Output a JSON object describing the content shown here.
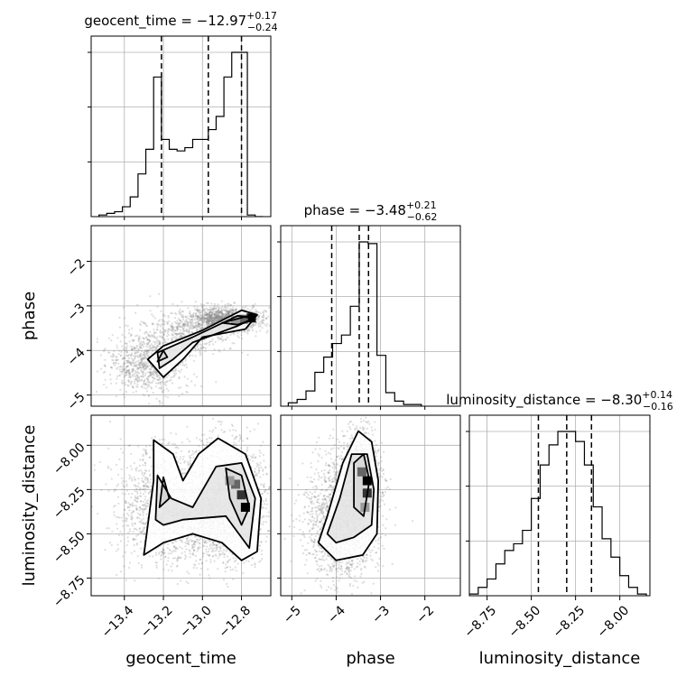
{
  "chart_data": {
    "type": "corner",
    "grid": true,
    "parameters": [
      "geocent_time",
      "phase",
      "luminosity_distance"
    ],
    "axis_labels": {
      "geocent_time": "geocent_time",
      "phase": "phase",
      "luminosity_distance": "luminosity_distance"
    },
    "titles": [
      {
        "param": "geocent_time",
        "prefix": "geocent_time = ",
        "value": "−12.97",
        "plus": "+0.17",
        "minus": "−0.24"
      },
      {
        "param": "phase",
        "prefix": "phase = ",
        "value": "−3.48",
        "plus": "+0.21",
        "minus": "−0.62"
      },
      {
        "param": "luminosity_distance",
        "prefix": "luminosity_distance = ",
        "value": "−8.30",
        "plus": "+0.14",
        "minus": "−0.16"
      }
    ],
    "ranges": {
      "geocent_time": [
        -13.57,
        -12.65
      ],
      "phase": [
        -5.25,
        -1.2
      ],
      "luminosity_distance": [
        -8.85,
        -7.83
      ]
    },
    "ticks": {
      "geocent_time": [
        {
          "v": -13.4,
          "label": "−13.4"
        },
        {
          "v": -13.2,
          "label": "−13.2"
        },
        {
          "v": -13.0,
          "label": "−13.0"
        },
        {
          "v": -12.8,
          "label": "−12.8"
        }
      ],
      "phase": [
        {
          "v": -5,
          "label": "−5"
        },
        {
          "v": -4,
          "label": "−4"
        },
        {
          "v": -3,
          "label": "−3"
        },
        {
          "v": -2,
          "label": "−2"
        }
      ],
      "luminosity_distance": [
        {
          "v": -8.75,
          "label": "−8.75"
        },
        {
          "v": -8.5,
          "label": "−8.50"
        },
        {
          "v": -8.25,
          "label": "−8.25"
        },
        {
          "v": -8.0,
          "label": "−8.00"
        }
      ]
    },
    "quantile_lines": {
      "geocent_time": [
        -13.21,
        -12.97,
        -12.8
      ],
      "phase": [
        -4.1,
        -3.48,
        -3.27
      ],
      "luminosity_distance": [
        -8.46,
        -8.3,
        -8.16
      ]
    },
    "histograms": {
      "geocent_time": {
        "edges": [
          -13.53,
          -13.49,
          -13.45,
          -13.41,
          -13.37,
          -13.33,
          -13.29,
          -13.25,
          -13.21,
          -13.17,
          -13.13,
          -13.09,
          -13.05,
          -13.01,
          -12.97,
          -12.93,
          -12.89,
          -12.85,
          -12.81,
          -12.77,
          -12.73,
          -12.69
        ],
        "counts": [
          1,
          2,
          3,
          6,
          12,
          26,
          41,
          85,
          47,
          41,
          40,
          42,
          47,
          47,
          53,
          61,
          85,
          100,
          100,
          1,
          0
        ]
      },
      "phase": {
        "edges": [
          -5.08,
          -4.88,
          -4.68,
          -4.48,
          -4.28,
          -4.08,
          -3.88,
          -3.68,
          -3.48,
          -3.28,
          -3.08,
          -2.88,
          -2.68,
          -2.48,
          -2.28,
          -2.08
        ],
        "counts": [
          2,
          4,
          9,
          20,
          29,
          37,
          42,
          59,
          97,
          96,
          30,
          8,
          3,
          1,
          1
        ]
      },
      "luminosity_distance": {
        "edges": [
          -8.85,
          -8.8,
          -8.75,
          -8.7,
          -8.65,
          -8.6,
          -8.55,
          -8.5,
          -8.45,
          -8.4,
          -8.35,
          -8.3,
          -8.25,
          -8.2,
          -8.15,
          -8.1,
          -8.05,
          -8.0,
          -7.95,
          -7.9,
          -7.85
        ],
        "counts": [
          1,
          5,
          10,
          19,
          27,
          31,
          39,
          58,
          78,
          90,
          98,
          98,
          92,
          78,
          53,
          34,
          23,
          12,
          5,
          1
        ]
      }
    },
    "scatter_2d": [
      {
        "x": "geocent_time",
        "y": "phase",
        "cores": [
          {
            "cx": -12.88,
            "cy": -3.3,
            "sx": 0.09,
            "sy": 0.13,
            "n": 1400
          },
          {
            "cx": -13.08,
            "cy": -3.6,
            "sx": 0.12,
            "sy": 0.25,
            "n": 500
          },
          {
            "cx": -13.27,
            "cy": -4.3,
            "sx": 0.1,
            "sy": 0.32,
            "n": 900
          }
        ],
        "contours": [
          [
            [
              -13.2,
              -4.6
            ],
            [
              -13.28,
              -4.2
            ],
            [
              -13.2,
              -3.9
            ],
            [
              -13.0,
              -3.55
            ],
            [
              -12.8,
              -3.1
            ],
            [
              -12.72,
              -3.2
            ],
            [
              -12.78,
              -3.52
            ],
            [
              -13.0,
              -3.7
            ],
            [
              -13.1,
              -4.2
            ]
          ],
          [
            [
              -13.22,
              -4.4
            ],
            [
              -13.23,
              -4.05
            ],
            [
              -13.05,
              -3.7
            ],
            [
              -12.82,
              -3.22
            ],
            [
              -12.74,
              -3.28
            ],
            [
              -12.82,
              -3.45
            ],
            [
              -13.05,
              -3.82
            ],
            [
              -13.15,
              -4.2
            ]
          ],
          [
            [
              -12.9,
              -3.38
            ],
            [
              -12.76,
              -3.22
            ],
            [
              -12.73,
              -3.3
            ],
            [
              -12.82,
              -3.42
            ]
          ],
          [
            [
              -13.23,
              -4.25
            ],
            [
              -13.2,
              -4.0
            ],
            [
              -13.18,
              -4.15
            ]
          ]
        ],
        "peaks": [
          {
            "x": -12.75,
            "y": -3.27,
            "z": 1.0
          },
          {
            "x": -12.79,
            "y": -3.3,
            "z": 0.6
          },
          {
            "x": -12.83,
            "y": -3.33,
            "z": 0.4
          }
        ]
      },
      {
        "x": "geocent_time",
        "y": "luminosity_distance",
        "cores": [
          {
            "cx": -12.87,
            "cy": -8.3,
            "sx": 0.11,
            "sy": 0.17,
            "n": 1500
          },
          {
            "cx": -13.2,
            "cy": -8.33,
            "sx": 0.12,
            "sy": 0.17,
            "n": 1100
          },
          {
            "cx": -13.0,
            "cy": -8.45,
            "sx": 0.15,
            "sy": 0.12,
            "n": 600
          }
        ],
        "contours": [
          [
            [
              -13.3,
              -8.62
            ],
            [
              -13.25,
              -8.2
            ],
            [
              -13.25,
              -7.97
            ],
            [
              -13.15,
              -8.05
            ],
            [
              -13.1,
              -8.2
            ],
            [
              -13.02,
              -8.05
            ],
            [
              -12.92,
              -7.96
            ],
            [
              -12.78,
              -8.05
            ],
            [
              -12.7,
              -8.3
            ],
            [
              -12.72,
              -8.6
            ],
            [
              -12.8,
              -8.65
            ],
            [
              -12.9,
              -8.55
            ],
            [
              -13.05,
              -8.5
            ],
            [
              -13.2,
              -8.55
            ]
          ],
          [
            [
              -13.24,
              -8.42
            ],
            [
              -13.23,
              -8.17
            ],
            [
              -13.16,
              -8.3
            ],
            [
              -13.05,
              -8.35
            ],
            [
              -12.93,
              -8.12
            ],
            [
              -12.8,
              -8.1
            ],
            [
              -12.73,
              -8.3
            ],
            [
              -12.76,
              -8.58
            ],
            [
              -12.88,
              -8.4
            ],
            [
              -13.1,
              -8.42
            ],
            [
              -13.2,
              -8.45
            ]
          ],
          [
            [
              -12.88,
              -8.13
            ],
            [
              -12.8,
              -8.17
            ],
            [
              -12.76,
              -8.35
            ],
            [
              -12.8,
              -8.45
            ],
            [
              -12.86,
              -8.3
            ]
          ],
          [
            [
              -13.22,
              -8.35
            ],
            [
              -13.2,
              -8.18
            ],
            [
              -13.17,
              -8.3
            ]
          ]
        ],
        "peaks": [
          {
            "x": -12.78,
            "y": -8.35,
            "z": 1.0
          },
          {
            "x": -12.8,
            "y": -8.28,
            "z": 0.8
          },
          {
            "x": -12.83,
            "y": -8.22,
            "z": 0.6
          },
          {
            "x": -12.86,
            "y": -8.2,
            "z": 0.4
          }
        ]
      },
      {
        "x": "phase",
        "y": "luminosity_distance",
        "cores": [
          {
            "cx": -3.45,
            "cy": -8.22,
            "sx": 0.22,
            "sy": 0.15,
            "n": 1600
          },
          {
            "cx": -3.9,
            "cy": -8.42,
            "sx": 0.4,
            "sy": 0.17,
            "n": 1600
          }
        ],
        "contours": [
          [
            [
              -4.4,
              -8.55
            ],
            [
              -4.2,
              -8.4
            ],
            [
              -3.85,
              -8.1
            ],
            [
              -3.5,
              -7.92
            ],
            [
              -3.2,
              -7.98
            ],
            [
              -3.05,
              -8.2
            ],
            [
              -3.08,
              -8.5
            ],
            [
              -3.4,
              -8.62
            ],
            [
              -4.0,
              -8.65
            ]
          ],
          [
            [
              -4.2,
              -8.5
            ],
            [
              -3.92,
              -8.3
            ],
            [
              -3.65,
              -8.05
            ],
            [
              -3.3,
              -8.05
            ],
            [
              -3.15,
              -8.25
            ],
            [
              -3.2,
              -8.45
            ],
            [
              -3.6,
              -8.52
            ],
            [
              -4.0,
              -8.55
            ]
          ],
          [
            [
              -3.6,
              -8.35
            ],
            [
              -3.6,
              -8.1
            ],
            [
              -3.38,
              -8.05
            ],
            [
              -3.25,
              -8.2
            ],
            [
              -3.38,
              -8.4
            ]
          ]
        ],
        "peaks": [
          {
            "x": -3.3,
            "y": -8.2,
            "z": 1.0
          },
          {
            "x": -3.3,
            "y": -8.27,
            "z": 0.8
          },
          {
            "x": -3.42,
            "y": -8.15,
            "z": 0.6
          },
          {
            "x": -3.35,
            "y": -8.35,
            "z": 0.4
          }
        ]
      }
    ]
  }
}
